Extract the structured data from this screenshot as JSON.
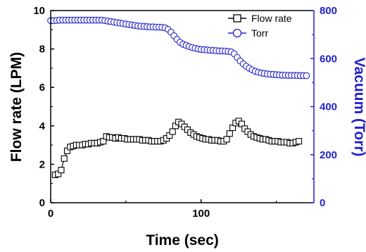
{
  "chart_data": {
    "type": "line",
    "xlabel": "Time (sec)",
    "ylabel": "Flow rate (LPM)",
    "ylabel_right": "Vacuum (Torr)",
    "xlim": [
      0,
      175
    ],
    "ylim": [
      0,
      10
    ],
    "ylim_right": [
      0,
      800
    ],
    "x_ticks": [
      0,
      100
    ],
    "y_ticks": [
      0,
      2,
      4,
      6,
      8,
      10
    ],
    "y_ticks_right": [
      0,
      200,
      400,
      600,
      800
    ],
    "grid": false,
    "legend_position": "top-right",
    "colors": {
      "flow": "#000000",
      "torr": "#2222cc",
      "axis_right": "#2222cc"
    },
    "series": [
      {
        "name": "Flow rate",
        "axis": "left",
        "marker": "open-square",
        "x": [
          3,
          5,
          7,
          9,
          11,
          13,
          15,
          17,
          19,
          21,
          23,
          25,
          27,
          29,
          31,
          33,
          35,
          37,
          39,
          41,
          43,
          45,
          47,
          49,
          51,
          53,
          55,
          57,
          59,
          61,
          63,
          65,
          67,
          69,
          71,
          73,
          75,
          77,
          79,
          81,
          83,
          85,
          87,
          89,
          91,
          93,
          95,
          97,
          99,
          101,
          103,
          105,
          107,
          109,
          111,
          113,
          115,
          117,
          119,
          121,
          123,
          125,
          127,
          129,
          131,
          133,
          135,
          137,
          139,
          141,
          143,
          145,
          147,
          149,
          151,
          153,
          155,
          157,
          159,
          161,
          163,
          165
        ],
        "values": [
          1.45,
          1.5,
          1.7,
          2.3,
          2.7,
          2.9,
          2.95,
          3.0,
          3.0,
          3.0,
          3.05,
          3.05,
          3.1,
          3.1,
          3.1,
          3.15,
          3.2,
          3.45,
          3.4,
          3.4,
          3.35,
          3.4,
          3.35,
          3.35,
          3.3,
          3.3,
          3.3,
          3.3,
          3.3,
          3.25,
          3.25,
          3.25,
          3.2,
          3.2,
          3.2,
          3.2,
          3.25,
          3.35,
          3.5,
          3.7,
          4.0,
          4.2,
          4.1,
          3.95,
          3.8,
          3.65,
          3.55,
          3.45,
          3.4,
          3.35,
          3.3,
          3.3,
          3.25,
          3.25,
          3.25,
          3.2,
          3.2,
          3.3,
          3.6,
          3.9,
          4.15,
          4.25,
          4.1,
          3.85,
          3.7,
          3.55,
          3.45,
          3.4,
          3.35,
          3.3,
          3.3,
          3.25,
          3.2,
          3.2,
          3.2,
          3.15,
          3.15,
          3.15,
          3.1,
          3.1,
          3.15,
          3.2
        ]
      },
      {
        "name": "Torr",
        "axis": "right",
        "marker": "open-circle",
        "x": [
          0,
          2,
          4,
          6,
          8,
          10,
          12,
          14,
          16,
          18,
          20,
          22,
          24,
          26,
          28,
          30,
          32,
          34,
          36,
          38,
          40,
          42,
          44,
          46,
          48,
          50,
          52,
          54,
          56,
          58,
          60,
          62,
          64,
          66,
          68,
          70,
          72,
          74,
          76,
          78,
          80,
          82,
          84,
          86,
          88,
          90,
          92,
          94,
          96,
          98,
          100,
          102,
          104,
          106,
          108,
          110,
          112,
          114,
          116,
          118,
          120,
          122,
          124,
          126,
          128,
          130,
          132,
          134,
          136,
          138,
          140,
          142,
          144,
          146,
          148,
          150,
          152,
          154,
          156,
          158,
          160,
          162,
          164,
          166,
          168,
          170
        ],
        "values": [
          758,
          758,
          759,
          760,
          760,
          760,
          760,
          760,
          760,
          760,
          760,
          760,
          760,
          760,
          760,
          760,
          760,
          760,
          758,
          756,
          754,
          752,
          750,
          748,
          746,
          744,
          742,
          740,
          738,
          736,
          735,
          734,
          733,
          732,
          732,
          731,
          731,
          730,
          728,
          722,
          710,
          695,
          680,
          668,
          660,
          655,
          650,
          646,
          643,
          640,
          638,
          637,
          636,
          635,
          634,
          633,
          632,
          632,
          631,
          630,
          628,
          620,
          605,
          590,
          578,
          568,
          560,
          553,
          547,
          543,
          540,
          538,
          536,
          535,
          534,
          533,
          532,
          531,
          531,
          530,
          530,
          530,
          530,
          529,
          529,
          529
        ]
      }
    ]
  }
}
